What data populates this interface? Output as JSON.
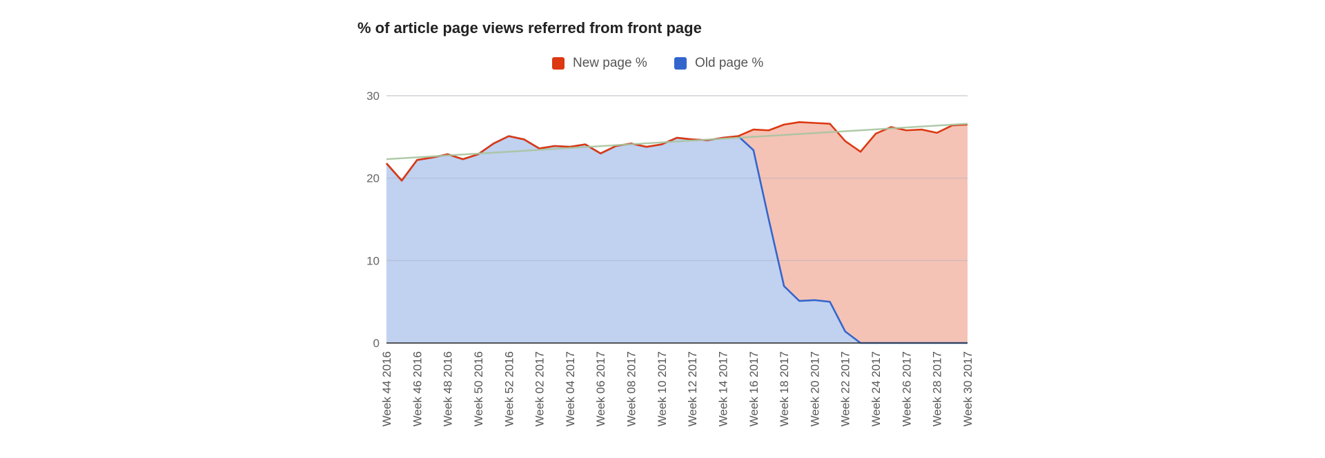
{
  "chart_data": {
    "type": "area",
    "title": "% of article page views referred from front page",
    "xlabel": "",
    "ylabel": "",
    "ylim": [
      0,
      30
    ],
    "yticks": [
      "0",
      "10",
      "20",
      "30"
    ],
    "grid": true,
    "legend_position": "top",
    "categories": [
      "Week 44 2016",
      "Week 45 2016",
      "Week 46 2016",
      "Week 47 2016",
      "Week 48 2016",
      "Week 49 2016",
      "Week 50 2016",
      "Week 51 2016",
      "Week 52 2016",
      "Week 01 2017",
      "Week 02 2017",
      "Week 03 2017",
      "Week 04 2017",
      "Week 05 2017",
      "Week 06 2017",
      "Week 07 2017",
      "Week 08 2017",
      "Week 09 2017",
      "Week 10 2017",
      "Week 11 2017",
      "Week 12 2017",
      "Week 13 2017",
      "Week 14 2017",
      "Week 15 2017",
      "Week 16 2017",
      "Week 17 2017",
      "Week 18 2017",
      "Week 19 2017",
      "Week 20 2017",
      "Week 21 2017",
      "Week 22 2017",
      "Week 23 2017",
      "Week 24 2017",
      "Week 25 2017",
      "Week 26 2017",
      "Week 27 2017",
      "Week 28 2017",
      "Week 29 2017",
      "Week 30 2017"
    ],
    "x_tick_labels": [
      "Week 44 2016",
      "Week 46 2016",
      "Week 48 2016",
      "Week 50 2016",
      "Week 52 2016",
      "Week 02 2017",
      "Week 04 2017",
      "Week 06 2017",
      "Week 08 2017",
      "Week 10 2017",
      "Week 12 2017",
      "Week 14 2017",
      "Week 16 2017",
      "Week 18 2017",
      "Week 20 2017",
      "Week 22 2017",
      "Week 24 2017",
      "Week 26 2017",
      "Week 28 2017",
      "Week 30 2017"
    ],
    "series": [
      {
        "name": "New page %",
        "color": "#dc3912",
        "fill": "#f4c3b6",
        "values": [
          21.8,
          19.7,
          22.2,
          22.5,
          22.9,
          22.3,
          22.9,
          24.2,
          25.1,
          24.7,
          23.6,
          23.9,
          23.8,
          24.1,
          23.0,
          23.9,
          24.2,
          23.8,
          24.1,
          24.9,
          24.7,
          24.6,
          24.9,
          25.1,
          25.9,
          25.8,
          26.5,
          26.8,
          26.7,
          26.6,
          24.5,
          23.2,
          25.4,
          26.2,
          25.8,
          25.9,
          25.5,
          26.4,
          26.5
        ]
      },
      {
        "name": "Old page %",
        "color": "#3366cc",
        "fill": "#c1d1f0",
        "values": [
          21.8,
          19.7,
          22.2,
          22.5,
          22.9,
          22.3,
          22.9,
          24.2,
          25.1,
          24.7,
          23.6,
          23.9,
          23.8,
          24.1,
          23.0,
          23.9,
          24.2,
          23.8,
          24.1,
          24.9,
          24.7,
          24.6,
          24.9,
          25.1,
          23.4,
          15.0,
          6.9,
          5.1,
          5.2,
          5.0,
          1.4,
          0,
          0,
          0,
          0,
          0,
          0,
          0,
          0
        ]
      }
    ],
    "trendline": {
      "color": "#a7c4a0",
      "start": 22.3,
      "end": 26.6
    }
  }
}
